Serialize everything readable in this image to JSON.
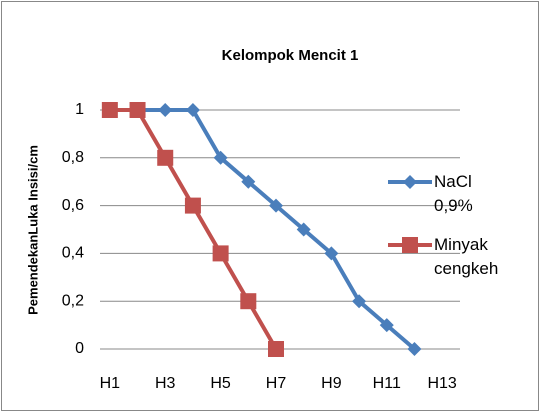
{
  "chart_data": {
    "type": "line",
    "title": "Kelompok Mencit 1",
    "y_label": "PemendekanLuka Insisi/cm",
    "categories": [
      "H1",
      null,
      "H3",
      null,
      "H5",
      null,
      "H7",
      null,
      "H9",
      null,
      "H11",
      null,
      "H13"
    ],
    "series": [
      {
        "name": "NaCl 0,9%",
        "color": "#4a7ebb",
        "marker": "diamond",
        "values": [
          1,
          1,
          1,
          1,
          0.8,
          0.7,
          0.6,
          0.5,
          0.4,
          0.2,
          0.1,
          0,
          null
        ]
      },
      {
        "name": "Minyak cengkeh",
        "color": "#c0504d",
        "marker": "square",
        "values": [
          1,
          1,
          0.8,
          0.6,
          0.4,
          0.2,
          0,
          null,
          null,
          null,
          null,
          null,
          null
        ]
      }
    ],
    "ylim": [
      0,
      1
    ],
    "yticks": [
      0,
      {
        "value": 0.2,
        "label": "0,2"
      },
      {
        "value": 0.4,
        "label": "0,4"
      },
      {
        "value": 0.6,
        "label": "0,6"
      },
      {
        "value": 0.8,
        "label": "0,8"
      },
      1
    ],
    "grid": true,
    "legend": "right"
  }
}
